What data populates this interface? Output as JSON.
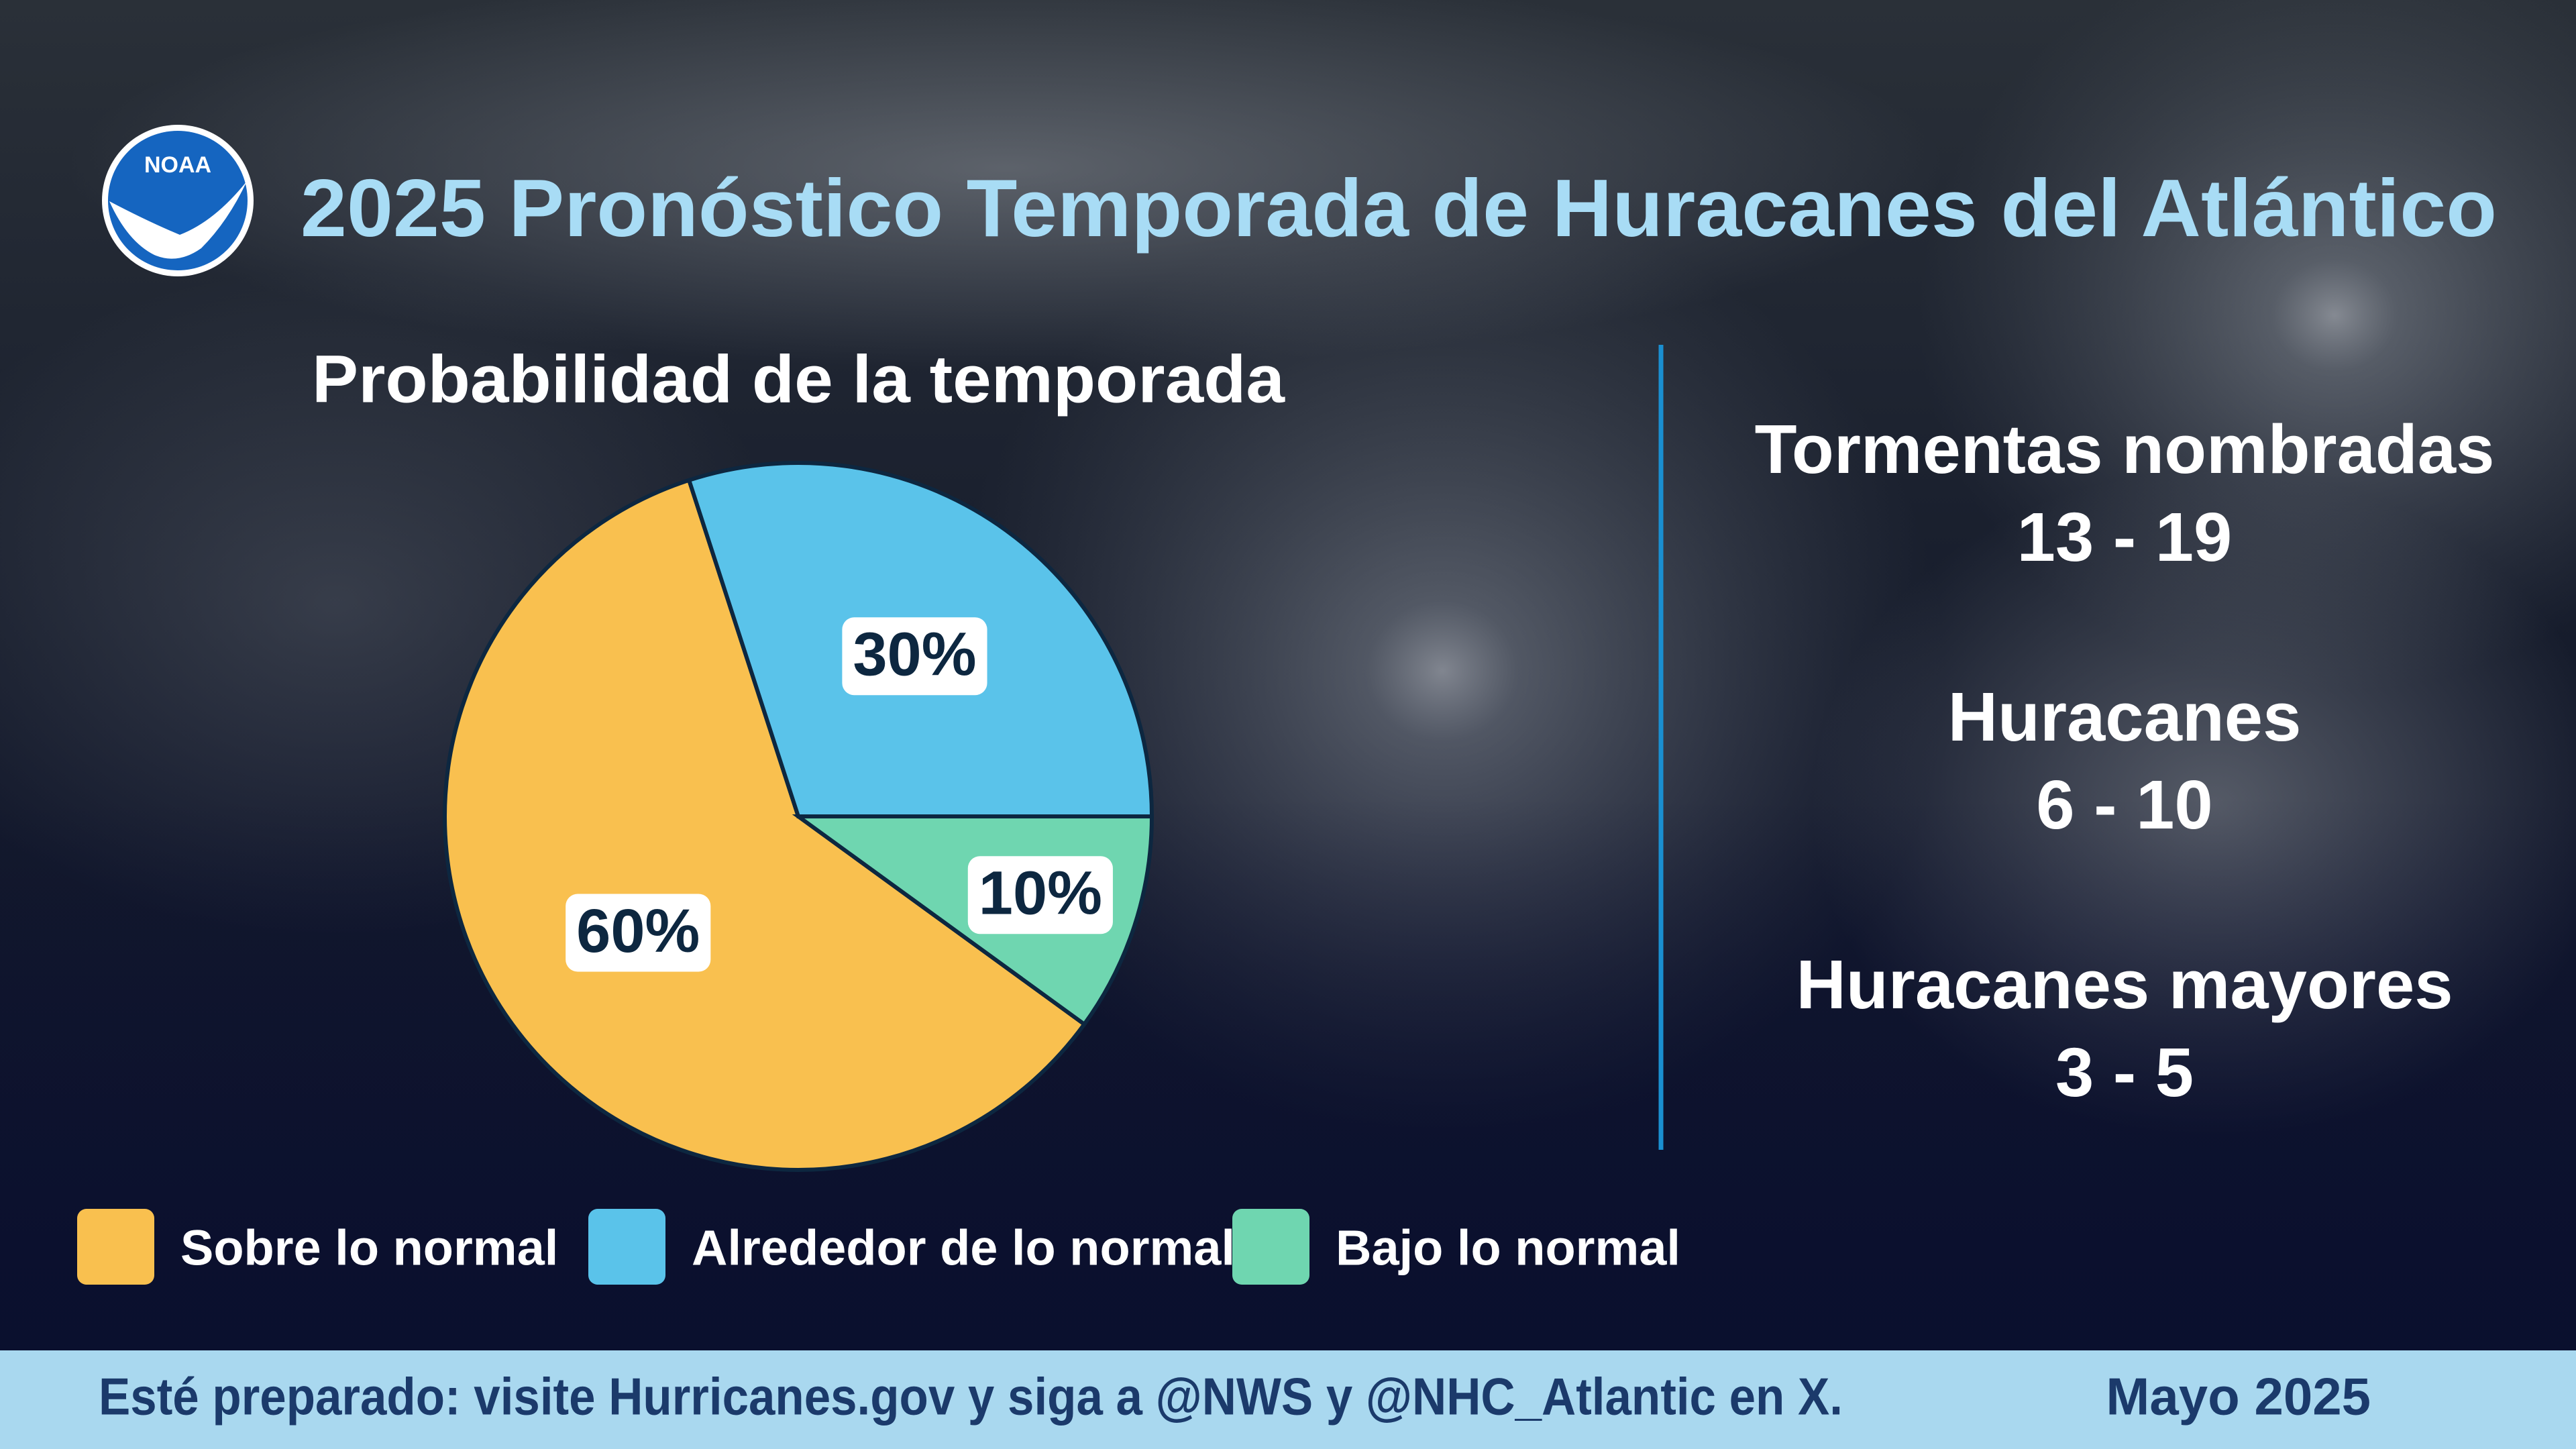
{
  "header": {
    "logo_text": "NOAA",
    "title": "2025 Pronóstico Temporada de Huracanes del Atlántico"
  },
  "chart_data": {
    "type": "pie",
    "title": "Probabilidad de la temporada",
    "categories": [
      "Sobre lo normal",
      "Alrededor de lo normal",
      "Bajo lo normal"
    ],
    "values": [
      60,
      30,
      10
    ],
    "value_labels": [
      "60%",
      "30%",
      "10%"
    ],
    "colors": [
      "#f9c04f",
      "#5ac3ea",
      "#6fd6b0"
    ]
  },
  "stats": [
    {
      "label": "Tormentas nombradas",
      "value": "13 - 19"
    },
    {
      "label": "Huracanes",
      "value": "6 - 10"
    },
    {
      "label": "Huracanes mayores",
      "value": "3 - 5"
    }
  ],
  "footer": {
    "text": "Esté preparado: visite Hurricanes.gov y siga a @NWS y @NHC_Atlantic en X.",
    "date": "Mayo 2025"
  }
}
